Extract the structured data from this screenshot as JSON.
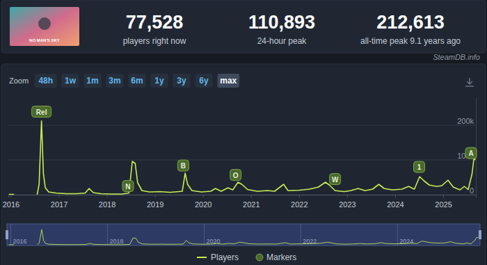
{
  "header": {
    "thumbnail_text": "NO MAN'S SKY",
    "stats": [
      {
        "value": "77,528",
        "label": "players right now"
      },
      {
        "value": "110,893",
        "label": "24-hour peak"
      },
      {
        "value": "212,613",
        "label": "all-time peak 9.1 years ago"
      }
    ],
    "source": "SteamDB.info"
  },
  "controls": {
    "zoom_label": "Zoom",
    "buttons": [
      "48h",
      "1w",
      "1m",
      "3m",
      "6m",
      "1y",
      "3y",
      "6y",
      "max"
    ],
    "active": "max"
  },
  "chart_data": {
    "type": "line",
    "x": [
      2015.96,
      2016.07,
      2016.3,
      2016.55,
      2016.59,
      2016.64,
      2016.68,
      2016.72,
      2016.79,
      2016.94,
      2017.16,
      2017.37,
      2017.55,
      2017.63,
      2017.72,
      2017.88,
      2018.1,
      2018.31,
      2018.46,
      2018.53,
      2018.59,
      2018.64,
      2018.73,
      2018.89,
      2019.11,
      2019.32,
      2019.57,
      2019.63,
      2019.68,
      2019.77,
      2019.97,
      2020.16,
      2020.26,
      2020.38,
      2020.52,
      2020.62,
      2020.73,
      2020.81,
      2020.93,
      2021.13,
      2021.35,
      2021.49,
      2021.68,
      2021.77,
      2022.0,
      2022.21,
      2022.4,
      2022.55,
      2022.63,
      2022.75,
      2022.94,
      2023.08,
      2023.23,
      2023.37,
      2023.53,
      2023.66,
      2023.77,
      2023.94,
      2024.14,
      2024.28,
      2024.4,
      2024.51,
      2024.6,
      2024.71,
      2024.86,
      2024.97,
      2025.1,
      2025.21,
      2025.35,
      2025.44,
      2025.52,
      2025.6,
      2025.64,
      2025.67
    ],
    "series": [
      {
        "name": "Players",
        "color": "#c8ee52",
        "values": [
          1000,
          1000,
          null,
          500,
          30000,
          212613,
          60000,
          20000,
          8000,
          5000,
          3000,
          3000,
          5000,
          18000,
          6000,
          3000,
          2000,
          2000,
          5000,
          96000,
          90000,
          35000,
          12000,
          8000,
          9000,
          7000,
          10000,
          62000,
          30000,
          12000,
          8000,
          10000,
          18000,
          10000,
          20000,
          14000,
          36000,
          30000,
          15000,
          10000,
          12000,
          10000,
          30000,
          12000,
          13000,
          16000,
          22000,
          36000,
          28000,
          12000,
          9000,
          12000,
          18000,
          12000,
          16000,
          30000,
          18000,
          14000,
          16000,
          24000,
          16000,
          52000,
          40000,
          28000,
          24000,
          26000,
          42000,
          22000,
          14000,
          24000,
          15000,
          60000,
          105000,
          100000
        ]
      }
    ],
    "xlim": [
      2015.95,
      2025.68
    ],
    "xticks": [
      2016,
      2017,
      2018,
      2019,
      2020,
      2021,
      2022,
      2023,
      2024,
      2025
    ],
    "ylim": [
      0,
      280000
    ],
    "yticks": [
      0,
      {
        "value": 100000,
        "label": "100k"
      },
      {
        "value": 200000,
        "label": "200k"
      }
    ],
    "grid": true,
    "legend": "bottom",
    "annotations": {
      "name": "Markers",
      "color": "#4a6a2c",
      "items": [
        {
          "label": "Rel",
          "x": 2016.64,
          "y": 239000
        },
        {
          "label": "N",
          "x": 2018.44,
          "y": 25000
        },
        {
          "label": "B",
          "x": 2019.59,
          "y": 84000
        },
        {
          "label": "O",
          "x": 2020.68,
          "y": 57000
        },
        {
          "label": "W",
          "x": 2022.75,
          "y": 45000
        },
        {
          "label": "1",
          "x": 2024.5,
          "y": 80000
        },
        {
          "label": "A",
          "x": 2025.58,
          "y": 120000
        }
      ]
    },
    "navigator_xticks": [
      2016,
      2018,
      2020,
      2022,
      2024
    ]
  }
}
